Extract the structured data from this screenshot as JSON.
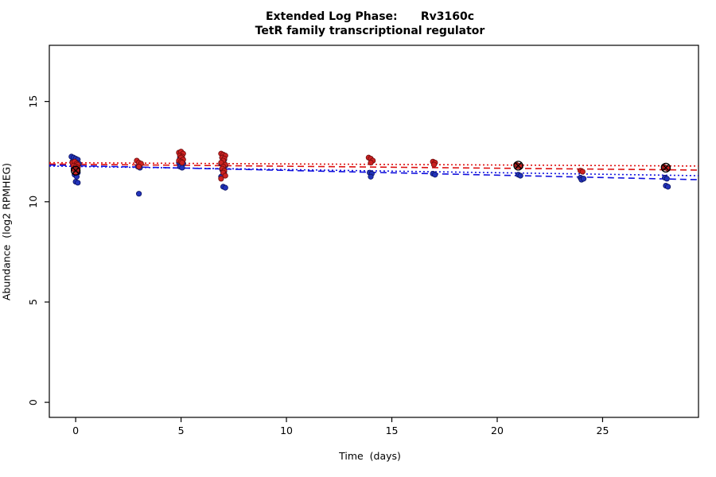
{
  "chart_data": {
    "type": "scatter",
    "title": "Extended Log Phase:      Rv3160c",
    "subtitle": "TetR family transcriptional regulator",
    "xlabel": "Time  (days)",
    "ylabel": "Abundance  (log2 RPMHEG)",
    "xlim": [
      -1.25,
      29.55
    ],
    "ylim": [
      -0.75,
      17.8
    ],
    "xticks": [
      0,
      5,
      10,
      15,
      20,
      25
    ],
    "yticks": [
      0,
      5,
      10,
      15
    ],
    "grid": false,
    "legend": "none",
    "point_radius": 3.2,
    "series": [
      {
        "name": "red",
        "color": "#cc2222",
        "edge_color": "#6e0c0c",
        "points": [
          [
            -0.15,
            11.95
          ],
          [
            -0.05,
            12.0
          ],
          [
            0.05,
            11.9
          ],
          [
            0.1,
            11.85
          ],
          [
            -0.1,
            11.8
          ],
          [
            0,
            11.75
          ],
          [
            0.1,
            11.7
          ],
          [
            -0.05,
            11.6
          ],
          [
            0.05,
            11.55
          ],
          [
            0,
            11.45
          ],
          [
            2.9,
            12.05
          ],
          [
            3.0,
            11.95
          ],
          [
            3.1,
            11.9
          ],
          [
            3.0,
            11.75
          ],
          [
            4.9,
            12.45
          ],
          [
            5.0,
            12.5
          ],
          [
            5.1,
            12.4
          ],
          [
            4.95,
            12.3
          ],
          [
            5.05,
            12.25
          ],
          [
            5.0,
            12.2
          ],
          [
            5.1,
            12.1
          ],
          [
            4.9,
            12.05
          ],
          [
            5.0,
            12.0
          ],
          [
            5.05,
            11.95
          ],
          [
            6.9,
            12.4
          ],
          [
            7.0,
            12.35
          ],
          [
            7.1,
            12.3
          ],
          [
            6.95,
            12.2
          ],
          [
            7.05,
            12.15
          ],
          [
            7.0,
            12.05
          ],
          [
            6.9,
            11.95
          ],
          [
            7.1,
            11.85
          ],
          [
            7.0,
            11.75
          ],
          [
            6.95,
            11.65
          ],
          [
            7.05,
            11.55
          ],
          [
            7.0,
            11.45
          ],
          [
            7.1,
            11.3
          ],
          [
            6.9,
            11.15
          ],
          [
            13.9,
            12.2
          ],
          [
            14.0,
            12.15
          ],
          [
            14.1,
            12.05
          ],
          [
            14.0,
            11.95
          ],
          [
            16.95,
            12.0
          ],
          [
            17.05,
            11.95
          ],
          [
            17.0,
            11.85
          ],
          [
            20.9,
            11.85
          ],
          [
            21.0,
            11.8
          ],
          [
            21.1,
            11.75
          ],
          [
            23.95,
            11.55
          ],
          [
            24.05,
            11.5
          ],
          [
            27.9,
            11.75
          ],
          [
            28.0,
            11.7
          ],
          [
            28.1,
            11.65
          ]
        ]
      },
      {
        "name": "blue",
        "color": "#2233bb",
        "edge_color": "#0d1460",
        "points": [
          [
            -0.2,
            12.25
          ],
          [
            -0.1,
            12.2
          ],
          [
            0,
            12.15
          ],
          [
            0.1,
            12.1
          ],
          [
            -0.15,
            12.0
          ],
          [
            0.05,
            11.95
          ],
          [
            0.15,
            11.9
          ],
          [
            -0.05,
            11.8
          ],
          [
            0.1,
            11.75
          ],
          [
            -0.1,
            11.65
          ],
          [
            0,
            11.55
          ],
          [
            0.1,
            11.45
          ],
          [
            -0.05,
            11.35
          ],
          [
            0.05,
            11.25
          ],
          [
            0,
            11.0
          ],
          [
            0.1,
            10.95
          ],
          [
            2.95,
            11.75
          ],
          [
            3.05,
            11.7
          ],
          [
            3.0,
            10.4
          ],
          [
            4.95,
            12.2
          ],
          [
            5.05,
            12.15
          ],
          [
            5.0,
            12.05
          ],
          [
            4.9,
            11.95
          ],
          [
            5.1,
            11.9
          ],
          [
            5.0,
            11.8
          ],
          [
            4.95,
            11.75
          ],
          [
            5.05,
            11.7
          ],
          [
            6.95,
            12.2
          ],
          [
            7.05,
            12.1
          ],
          [
            7.0,
            12.0
          ],
          [
            6.9,
            11.9
          ],
          [
            7.1,
            11.8
          ],
          [
            7.0,
            11.7
          ],
          [
            6.95,
            11.6
          ],
          [
            7.05,
            11.5
          ],
          [
            7.0,
            11.35
          ],
          [
            6.9,
            11.25
          ],
          [
            7.0,
            10.75
          ],
          [
            7.1,
            10.7
          ],
          [
            13.95,
            11.45
          ],
          [
            14.05,
            11.4
          ],
          [
            14.0,
            11.25
          ],
          [
            16.95,
            11.4
          ],
          [
            17.05,
            11.35
          ],
          [
            21.0,
            11.35
          ],
          [
            21.1,
            11.3
          ],
          [
            23.95,
            11.2
          ],
          [
            24.0,
            11.1
          ],
          [
            24.1,
            11.15
          ],
          [
            27.95,
            11.2
          ],
          [
            28.05,
            11.15
          ],
          [
            28.0,
            10.8
          ],
          [
            28.1,
            10.75
          ]
        ]
      }
    ],
    "special_markers": {
      "symbol": "circle-x",
      "color": "#000000",
      "points": [
        [
          0,
          11.55
        ],
        [
          21,
          11.8
        ],
        [
          28,
          11.7
        ]
      ]
    },
    "trend_lines": [
      {
        "name": "red-dotted",
        "color": "#dd1111",
        "dash": "2 3",
        "y_start": 11.95,
        "y_end": 11.78
      },
      {
        "name": "red-dashed",
        "color": "#dd1111",
        "dash": "8 5",
        "y_start": 11.88,
        "y_end": 11.58
      },
      {
        "name": "blue-dotted",
        "color": "#1111dd",
        "dash": "2 3",
        "y_start": 11.78,
        "y_end": 11.3
      },
      {
        "name": "blue-dashed",
        "color": "#1111dd",
        "dash": "8 5",
        "y_start": 11.83,
        "y_end": 11.1
      }
    ],
    "axis_color": "#000000",
    "background": "#ffffff"
  }
}
